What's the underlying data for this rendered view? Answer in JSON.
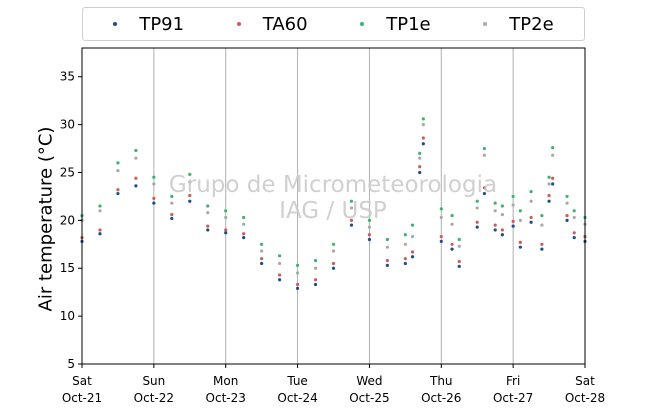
{
  "chart_data": {
    "type": "scatter",
    "ylabel": "Air temperature (°C)",
    "ylim": [
      5,
      38
    ],
    "yticks": [
      5,
      10,
      15,
      20,
      25,
      30,
      35
    ],
    "x_range": [
      "2018-10-21 00:00",
      "2018-10-28 00:00"
    ],
    "xticks": [
      {
        "day": "Sat",
        "date": "Oct-21"
      },
      {
        "day": "Sun",
        "date": "Oct-22"
      },
      {
        "day": "Mon",
        "date": "Oct-23"
      },
      {
        "day": "Tue",
        "date": "Oct-24"
      },
      {
        "day": "Wed",
        "date": "Oct-25"
      },
      {
        "day": "Thu",
        "date": "Oct-26"
      },
      {
        "day": "Fri",
        "date": "Oct-27"
      },
      {
        "day": "Sat",
        "date": "Oct-28"
      }
    ],
    "grid": "vertical",
    "legend_position": "top",
    "watermark": [
      "Grupo de Micrometeorologia",
      "IAG / USP"
    ],
    "x_days": [
      0.0,
      0.25,
      0.5,
      0.75,
      1.0,
      1.25,
      1.5,
      1.75,
      2.0,
      2.25,
      2.5,
      2.75,
      3.0,
      3.25,
      3.5,
      3.75,
      4.0,
      4.25,
      4.5,
      4.6,
      4.7,
      4.75,
      5.0,
      5.15,
      5.25,
      5.5,
      5.6,
      5.75,
      5.85,
      6.0,
      6.1,
      6.25,
      6.4,
      6.5,
      6.55,
      6.75,
      6.85,
      7.0
    ],
    "series": [
      {
        "name": "TP91",
        "color": "#1f4e8c",
        "values": [
          17.8,
          18.6,
          22.8,
          23.6,
          21.8,
          20.2,
          22.0,
          19.0,
          18.7,
          18.2,
          15.5,
          13.8,
          12.9,
          13.3,
          15.0,
          19.5,
          18.0,
          15.3,
          15.5,
          16.2,
          25.0,
          28.0,
          17.8,
          17.0,
          15.2,
          19.3,
          22.8,
          19.0,
          18.5,
          19.4,
          17.2,
          19.8,
          17.0,
          22.0,
          23.8,
          20.0,
          18.2,
          17.8
        ]
      },
      {
        "name": "TA60",
        "color": "#cd5c5c",
        "values": [
          18.2,
          19.0,
          23.2,
          24.4,
          22.3,
          20.6,
          22.6,
          19.4,
          19.0,
          18.6,
          16.0,
          14.3,
          13.3,
          13.8,
          15.5,
          20.0,
          18.5,
          15.8,
          16.0,
          16.7,
          25.6,
          28.6,
          18.3,
          17.5,
          15.7,
          19.8,
          23.4,
          19.5,
          19.0,
          19.9,
          17.7,
          20.3,
          17.5,
          22.6,
          24.4,
          20.5,
          18.7,
          18.3
        ]
      },
      {
        "name": "TP1e",
        "color": "#3cb371",
        "values": [
          20.5,
          21.5,
          26.0,
          27.3,
          24.5,
          22.5,
          24.8,
          21.5,
          21.0,
          20.3,
          17.5,
          16.3,
          15.3,
          15.8,
          17.5,
          22.0,
          20.0,
          18.0,
          18.5,
          19.5,
          27.0,
          30.6,
          21.2,
          20.5,
          18.0,
          22.0,
          27.5,
          21.8,
          21.5,
          22.5,
          21.0,
          23.0,
          20.5,
          24.5,
          27.6,
          22.5,
          21.0,
          20.3
        ]
      },
      {
        "name": "TP2e",
        "color": "#a9a9a9",
        "values": [
          20.0,
          21.0,
          25.2,
          26.5,
          23.8,
          21.8,
          24.0,
          20.8,
          20.3,
          19.6,
          16.8,
          15.5,
          14.5,
          15.0,
          16.8,
          21.3,
          19.3,
          17.2,
          17.5,
          18.3,
          26.5,
          30.0,
          20.3,
          19.6,
          17.3,
          21.3,
          26.8,
          21.0,
          20.6,
          21.6,
          20.0,
          22.0,
          19.5,
          23.8,
          26.8,
          21.8,
          20.3,
          19.6
        ]
      }
    ]
  }
}
